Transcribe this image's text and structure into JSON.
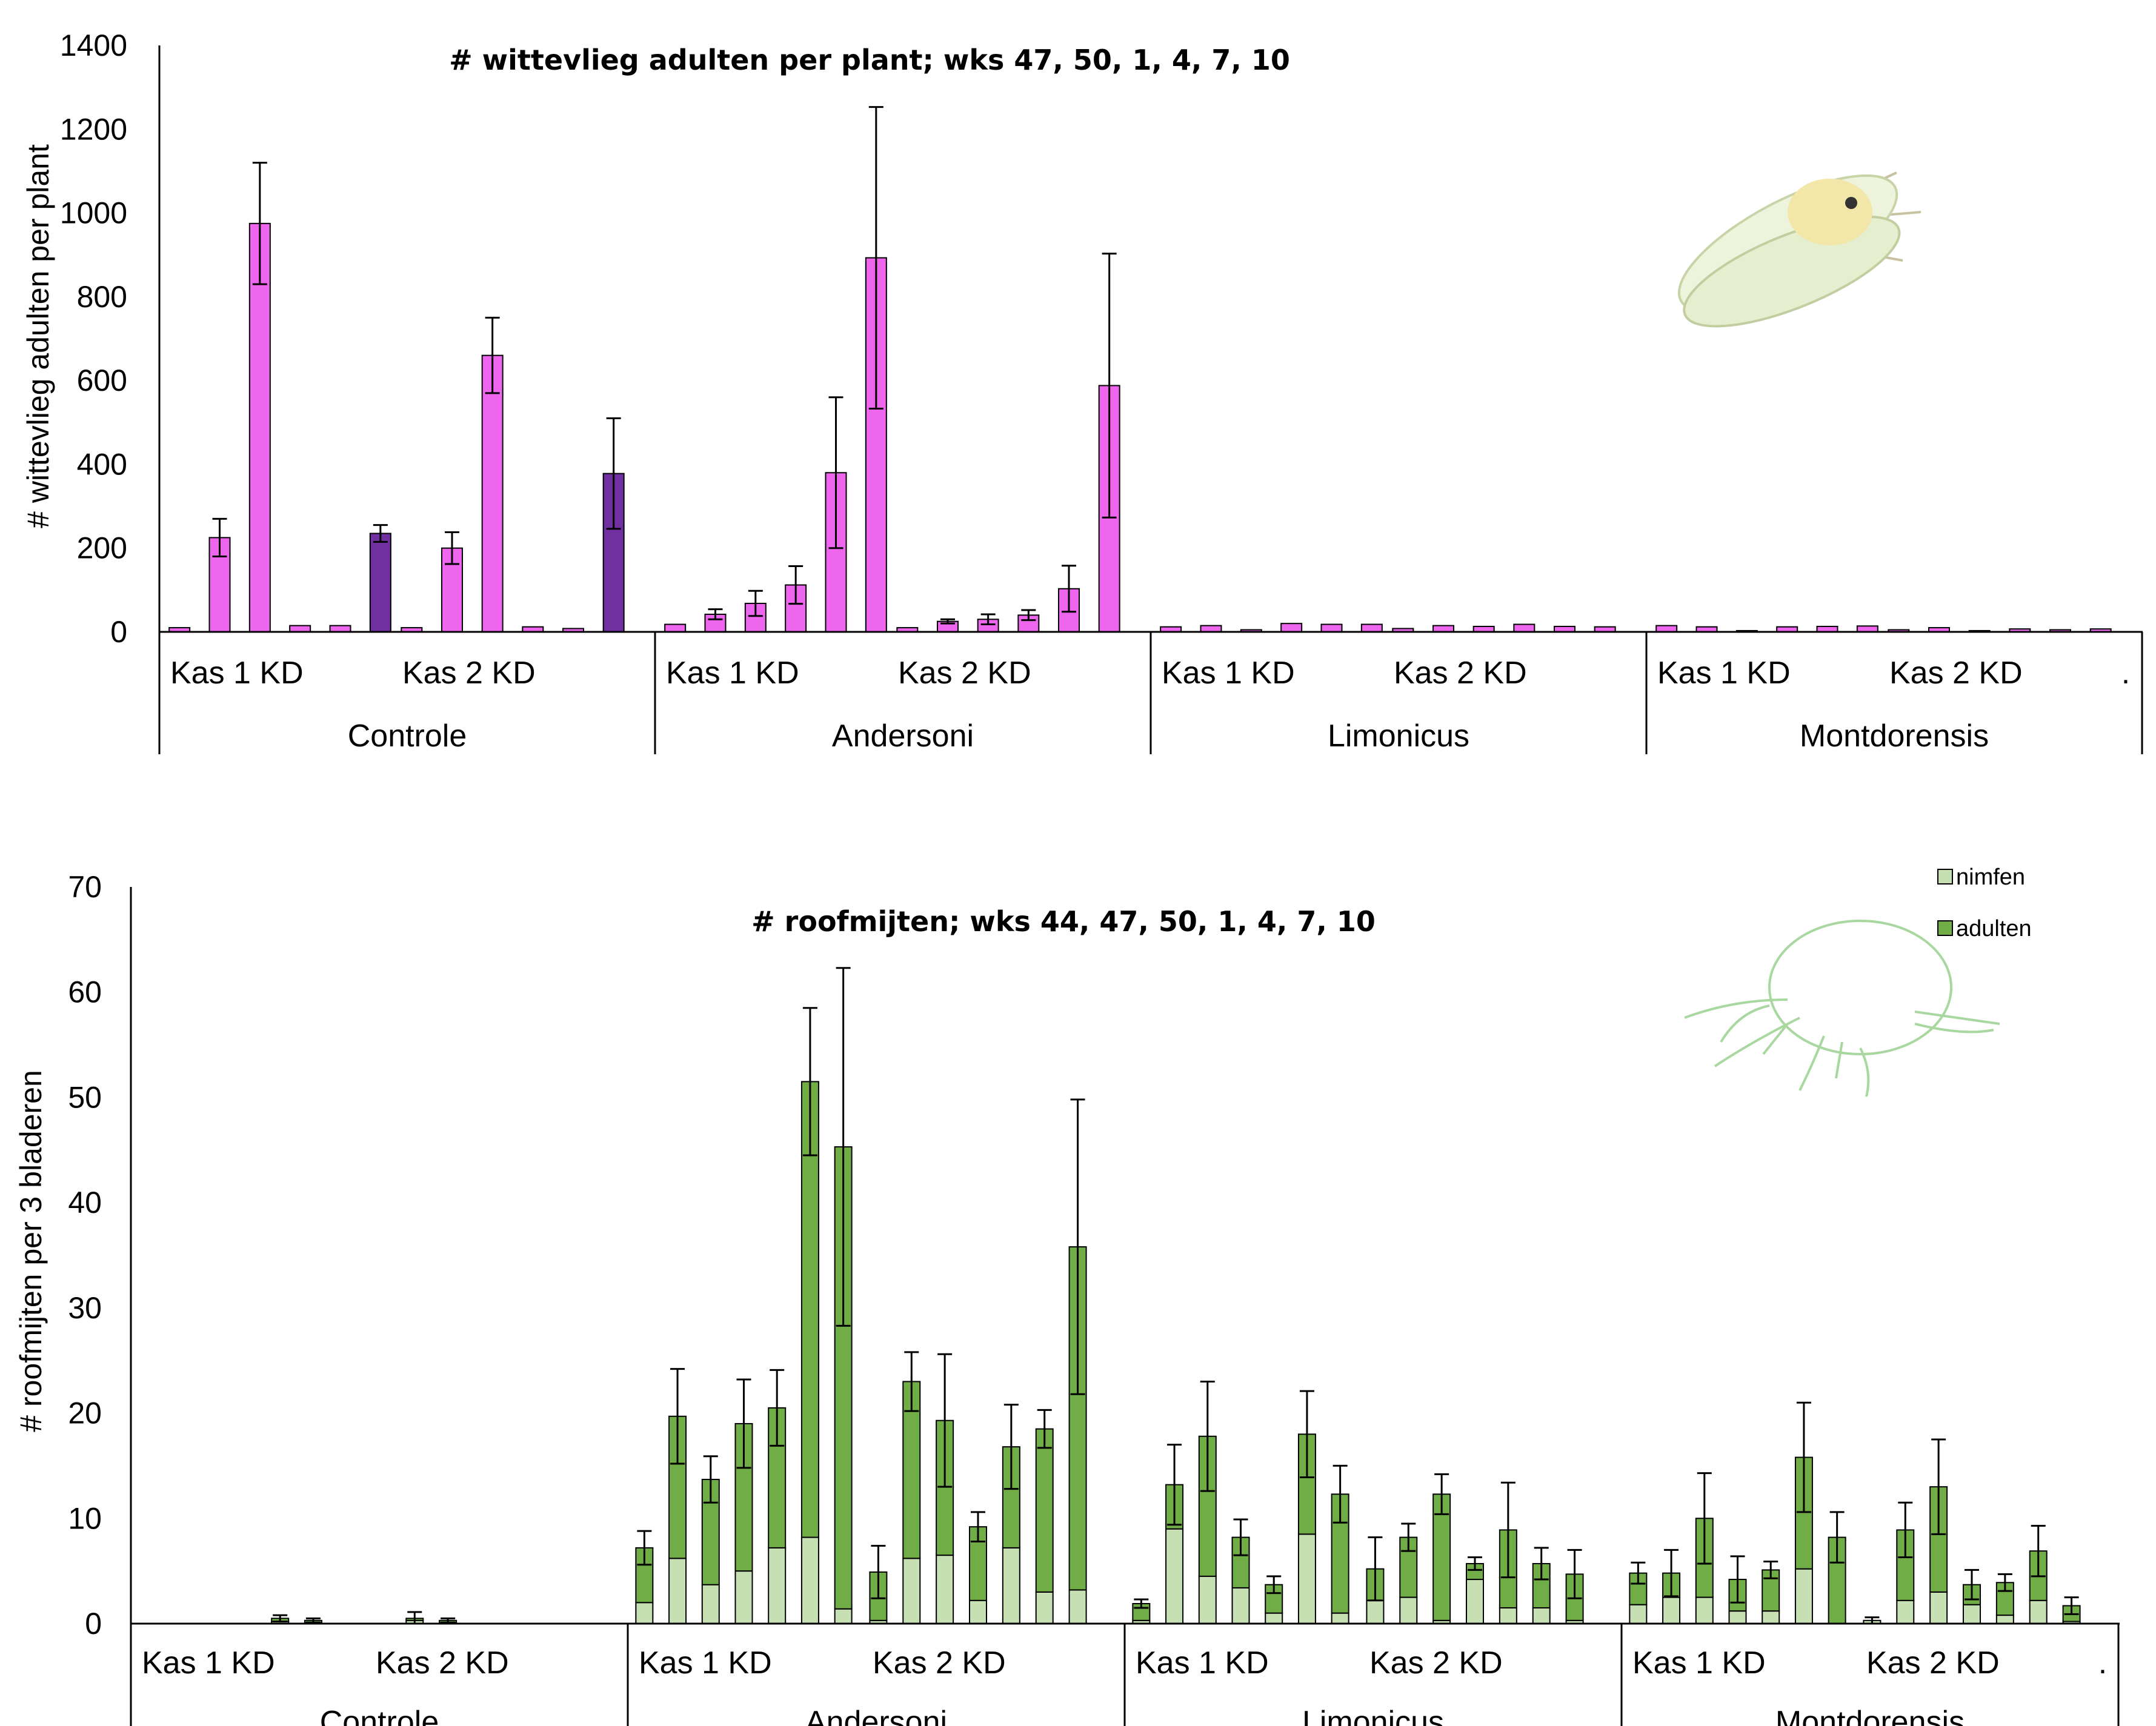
{
  "chart_data": [
    {
      "type": "bar",
      "title": "# wittevlieg adulten per plant; wks 47, 50, 1, 4, 7, 10",
      "xlabel": "",
      "ylabel": "# wittevlieg adulten per plant",
      "ylim": [
        0,
        1400
      ],
      "yticks": [
        "0",
        "200",
        "400",
        "600",
        "800",
        "1000",
        "1200",
        "1400"
      ],
      "grid": false,
      "groups": [
        "Controle",
        "Andersoni",
        "Limonicus",
        "Montdorensis"
      ],
      "subgroups": [
        "Kas 1 KD",
        "Kas 2 KD"
      ],
      "trailing_label": ".",
      "bars_per_subgroup": 6,
      "colors": {
        "bar": "#ee66ee",
        "highlight": "#7030a0"
      },
      "values": [
        [
          [
            10,
            225,
            975,
            15,
            15,
            235
          ],
          [
            10,
            200,
            660,
            12,
            8,
            378
          ]
        ],
        [
          [
            18,
            42,
            68,
            112,
            380,
            893
          ],
          [
            10,
            25,
            30,
            40,
            103,
            588
          ]
        ],
        [
          [
            12,
            15,
            5,
            20,
            18,
            18
          ],
          [
            8,
            15,
            13,
            18,
            13,
            12
          ]
        ],
        [
          [
            15,
            12,
            3,
            12,
            13,
            14
          ],
          [
            5,
            10,
            3,
            7,
            5,
            7
          ]
        ]
      ],
      "errors": [
        [
          [
            0,
            45,
            145,
            0,
            0,
            20
          ],
          [
            0,
            38,
            90,
            0,
            0,
            132
          ]
        ],
        [
          [
            0,
            12,
            30,
            45,
            180,
            360
          ],
          [
            0,
            5,
            12,
            12,
            55,
            315
          ]
        ],
        [
          [
            0,
            0,
            0,
            0,
            0,
            0
          ],
          [
            0,
            0,
            0,
            0,
            0,
            0
          ]
        ],
        [
          [
            0,
            0,
            0,
            0,
            0,
            0
          ],
          [
            0,
            0,
            0,
            0,
            0,
            0
          ]
        ]
      ],
      "highlight": [
        [
          [
            false,
            false,
            false,
            false,
            false,
            true
          ],
          [
            false,
            false,
            false,
            false,
            false,
            true
          ]
        ],
        [
          [
            false,
            false,
            false,
            false,
            false,
            false
          ],
          [
            false,
            false,
            false,
            false,
            false,
            false
          ]
        ],
        [
          [
            false,
            false,
            false,
            false,
            false,
            false
          ],
          [
            false,
            false,
            false,
            false,
            false,
            false
          ]
        ],
        [
          [
            false,
            false,
            false,
            false,
            false,
            false
          ],
          [
            false,
            false,
            false,
            false,
            false,
            false
          ]
        ]
      ]
    },
    {
      "type": "bar",
      "stacked": true,
      "title": "# roofmijten; wks 44, 47, 50, 1, 4, 7, 10",
      "xlabel": "",
      "ylabel": "# roofmijten per 3 bladeren",
      "ylim": [
        0,
        70
      ],
      "yticks": [
        "0",
        "10",
        "20",
        "30",
        "40",
        "50",
        "60",
        "70"
      ],
      "grid": false,
      "legend_position": "top-right",
      "groups": [
        "Controle",
        "Andersoni",
        "Limonicus",
        "Montdorensis"
      ],
      "subgroups": [
        "Kas 1 KD",
        "Kas 2 KD"
      ],
      "trailing_label": ".",
      "bars_per_subgroup": 7,
      "series": [
        {
          "name": "nimfen",
          "color": "#c6e0b4",
          "values": [
            [
              [
                0,
                0,
                0,
                0,
                0.2,
                0.1,
                0
              ],
              [
                0,
                0.3,
                0.1,
                0,
                0,
                0,
                0
              ]
            ],
            [
              [
                2,
                6.2,
                3.7,
                5,
                7.2,
                8.2,
                1.4
              ],
              [
                0.3,
                6.2,
                6.5,
                2.2,
                7.2,
                3,
                3.2
              ]
            ],
            [
              [
                0.3,
                9,
                4.5,
                3.4,
                1,
                8.5,
                1
              ],
              [
                2.2,
                2.5,
                0.3,
                4.2,
                1.5,
                1.5,
                0.3
              ]
            ],
            [
              [
                1.8,
                2.5,
                2.5,
                1.2,
                1.2,
                5.2,
                0
              ],
              [
                0.3,
                2.2,
                3,
                1.8,
                0.8,
                2.2,
                0.2
              ]
            ]
          ]
        },
        {
          "name": "adulten",
          "color": "#70ad47",
          "values": [
            [
              [
                0,
                0,
                0,
                0,
                0.3,
                0.2,
                0
              ],
              [
                0,
                0.2,
                0.2,
                0,
                0,
                0,
                0
              ]
            ],
            [
              [
                5.2,
                13.5,
                10,
                14,
                13.3,
                43.3,
                43.9
              ],
              [
                4.6,
                16.8,
                12.8,
                7,
                9.6,
                15.5,
                32.6
              ]
            ],
            [
              [
                1.6,
                4.2,
                13.3,
                4.8,
                2.7,
                9.5,
                11.3
              ],
              [
                3,
                5.7,
                12,
                1.5,
                7.4,
                4.2,
                4.4
              ]
            ],
            [
              [
                3,
                2.3,
                7.5,
                3,
                3.9,
                10.6,
                8.2
              ],
              [
                0,
                6.7,
                10,
                1.9,
                3.1,
                4.7,
                1.5
              ]
            ]
          ]
        }
      ],
      "errors": [
        [
          [
            0,
            0,
            0,
            0,
            0.3,
            0.2,
            0
          ],
          [
            0,
            0.6,
            0.2,
            0,
            0,
            0,
            0
          ]
        ],
        [
          [
            1.6,
            4.5,
            2.2,
            4.2,
            3.6,
            7,
            17
          ],
          [
            2.5,
            2.8,
            6.3,
            1.4,
            4,
            1.8,
            14
          ]
        ],
        [
          [
            0.4,
            3.8,
            5.2,
            1.7,
            0.8,
            4.1,
            2.7
          ],
          [
            3,
            1.3,
            1.9,
            0.6,
            4.5,
            1.5,
            2.3
          ]
        ],
        [
          [
            1,
            2.2,
            4.3,
            2.2,
            0.8,
            5.2,
            2.4
          ],
          [
            0.3,
            2.6,
            4.5,
            1.4,
            0.8,
            2.4,
            0.8
          ]
        ]
      ]
    }
  ]
}
